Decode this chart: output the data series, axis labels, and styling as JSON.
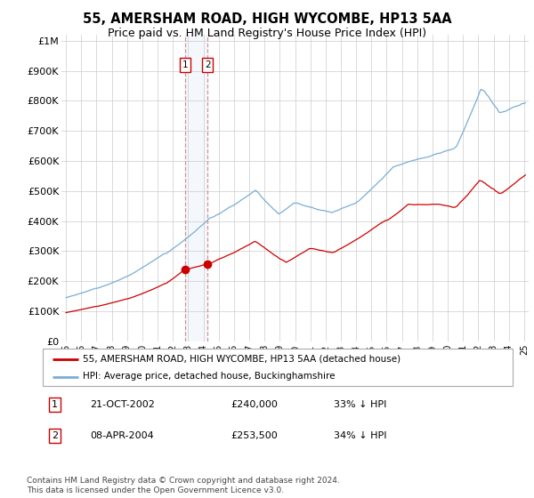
{
  "title": "55, AMERSHAM ROAD, HIGH WYCOMBE, HP13 5AA",
  "subtitle": "Price paid vs. HM Land Registry's House Price Index (HPI)",
  "title_fontsize": 10.5,
  "subtitle_fontsize": 9,
  "ylabel_ticks": [
    "£0",
    "£100K",
    "£200K",
    "£300K",
    "£400K",
    "£500K",
    "£600K",
    "£700K",
    "£800K",
    "£900K",
    "£1M"
  ],
  "ytick_values": [
    0,
    100000,
    200000,
    300000,
    400000,
    500000,
    600000,
    700000,
    800000,
    900000,
    1000000
  ],
  "ylim": [
    0,
    1020000
  ],
  "xlim_start": 1995.0,
  "xlim_end": 2025.3,
  "hpi_color": "#7aadd4",
  "price_color": "#cc0000",
  "legend_label_red": "55, AMERSHAM ROAD, HIGH WYCOMBE, HP13 5AA (detached house)",
  "legend_label_blue": "HPI: Average price, detached house, Buckinghamshire",
  "transactions": [
    {
      "id": 1,
      "date": "21-OCT-2002",
      "price": 240000,
      "hpi_diff": "33% ↓ HPI",
      "year": 2002.8
    },
    {
      "id": 2,
      "date": "08-APR-2004",
      "price": 253500,
      "hpi_diff": "34% ↓ HPI",
      "year": 2004.27
    }
  ],
  "footnote": "Contains HM Land Registry data © Crown copyright and database right 2024.\nThis data is licensed under the Open Government Licence v3.0.",
  "span_start": 2002.8,
  "span_end": 2004.27
}
